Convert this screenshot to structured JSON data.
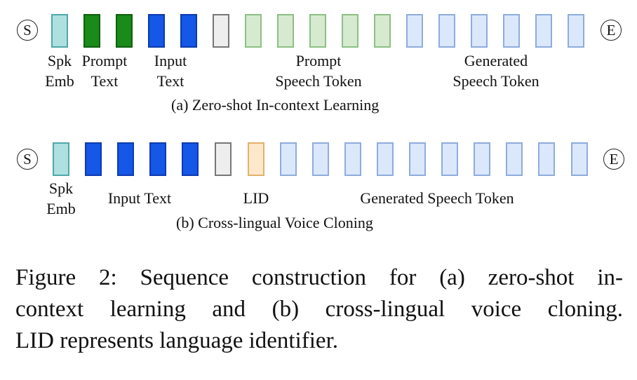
{
  "diagram_a": {
    "start_symbol": "S",
    "end_symbol": "E",
    "labels": {
      "spk_emb_1": "Spk",
      "spk_emb_2": "Emb",
      "prompt_text_1": "Prompt",
      "prompt_text_2": "Text",
      "input_text_1": "Input",
      "input_text_2": "Text",
      "prompt_speech_1": "Prompt",
      "prompt_speech_2": "Speech Token",
      "generated_speech_1": "Generated",
      "generated_speech_2": "Speech Token"
    },
    "subcaption": "(a) Zero-shot In-context Learning"
  },
  "diagram_b": {
    "start_symbol": "S",
    "end_symbol": "E",
    "labels": {
      "spk_emb_1": "Spk",
      "spk_emb_2": "Emb",
      "input_text": "Input Text",
      "lid": "LID",
      "generated_speech": "Generated Speech Token"
    },
    "subcaption": "(b) Cross-lingual Voice Cloning"
  },
  "figure_caption": {
    "line1": "Figure 2:  Sequence construction for (a) zero-shot in-",
    "line2": "context learning and (b) cross-lingual voice cloning.",
    "line3": "LID represents language identifier."
  },
  "colors": {
    "speaker_embedding": "#aee0e0",
    "prompt_text": "#1a8a1a",
    "input_text": "#1557e6",
    "separator": "#eeeeee",
    "prompt_speech_token": "#d6ead0",
    "generated_speech_token": "#dbe7fb",
    "lid": "#fde8cc"
  }
}
